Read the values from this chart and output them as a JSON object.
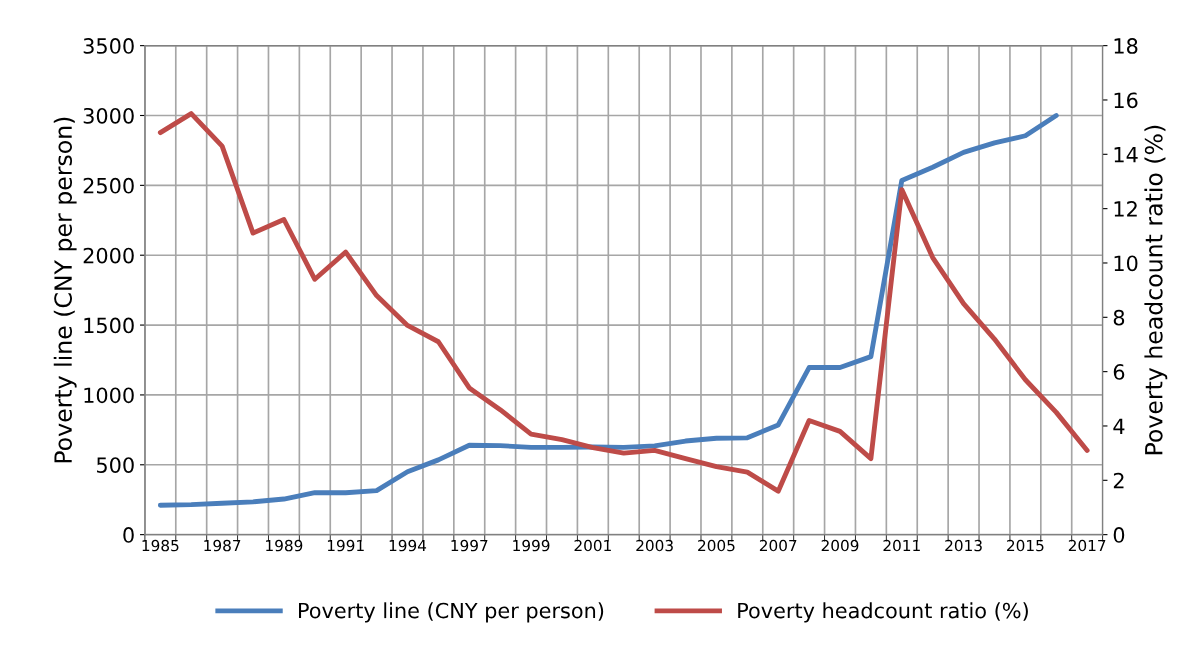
{
  "chart_data": {
    "type": "line",
    "categories": [
      "1985",
      null,
      "1987",
      null,
      "1989",
      null,
      "1991",
      null,
      "1994",
      null,
      "1997",
      null,
      "1999",
      null,
      "2001",
      null,
      "2003",
      null,
      "2005",
      null,
      "2007",
      null,
      "2009",
      null,
      "2011",
      null,
      "2013",
      null,
      "2015",
      null,
      "2017"
    ],
    "series": [
      {
        "name": "Poverty line (CNY per person)",
        "color": "#4a7ebb",
        "values": [
          210,
          215,
          225,
          235,
          255,
          300,
          300,
          315,
          450,
          535,
          640,
          637,
          625,
          625,
          627,
          625,
          635,
          670,
          690,
          693,
          785,
          1196,
          1196,
          1274,
          2535,
          2630,
          2736,
          2804,
          2855,
          3000,
          null
        ]
      },
      {
        "name": "Poverty headcount ratio (%)",
        "color": "#be4b48",
        "axis": "y2",
        "values": [
          14.8,
          15.5,
          14.3,
          11.1,
          11.6,
          9.4,
          10.4,
          8.8,
          7.7,
          7.1,
          5.4,
          4.6,
          3.7,
          3.5,
          3.2,
          3.0,
          3.1,
          2.8,
          2.5,
          2.3,
          1.6,
          4.2,
          3.8,
          2.8,
          12.7,
          10.2,
          8.5,
          7.2,
          5.7,
          4.5,
          3.1
        ]
      }
    ],
    "ylabel": "Poverty line (CNY per person)",
    "y2label": "Poverty headcount ratio (%)",
    "ylim": [
      0,
      3500
    ],
    "yticks": [
      0,
      500,
      1000,
      1500,
      2000,
      2500,
      3000,
      3500
    ],
    "y2lim": [
      0,
      18
    ],
    "y2ticks": [
      0,
      2,
      4,
      6,
      8,
      10,
      12,
      14,
      16,
      18
    ],
    "grid": true,
    "legend": "bottom",
    "line_style": "solid",
    "marker": "none"
  }
}
